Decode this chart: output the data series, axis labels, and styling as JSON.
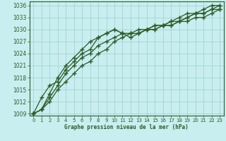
{
  "xlabel": "Graphe pression niveau de la mer (hPa)",
  "bg_color": "#c8eef0",
  "grid_color": "#9dcfcf",
  "line_color": "#2d5a27",
  "xlim": [
    -0.5,
    23.5
  ],
  "ylim": [
    1008.5,
    1037
  ],
  "yticks": [
    1009,
    1012,
    1015,
    1018,
    1021,
    1024,
    1027,
    1030,
    1033,
    1036
  ],
  "xticks": [
    0,
    1,
    2,
    3,
    4,
    5,
    6,
    7,
    8,
    9,
    10,
    11,
    12,
    13,
    14,
    15,
    16,
    17,
    18,
    19,
    20,
    21,
    22,
    23
  ],
  "series": [
    [
      1009,
      1013,
      1016,
      1017,
      1020,
      1022,
      1024,
      1025,
      1028,
      1029,
      1030,
      1029,
      1028,
      1029,
      1030,
      1031,
      1031,
      1032,
      1033,
      1034,
      1034,
      1035,
      1036,
      1036
    ],
    [
      1009,
      1010,
      1014,
      1018,
      1021,
      1023,
      1025,
      1027,
      1028,
      1029,
      1030,
      1029,
      1029,
      1029,
      1030,
      1030,
      1031,
      1031,
      1032,
      1033,
      1034,
      1034,
      1035,
      1036
    ],
    [
      1009,
      1010,
      1013,
      1016,
      1019,
      1021,
      1023,
      1024,
      1026,
      1027,
      1028,
      1029,
      1029,
      1030,
      1030,
      1031,
      1031,
      1032,
      1032,
      1033,
      1034,
      1034,
      1035,
      1035
    ],
    [
      1009,
      1010,
      1012,
      1015,
      1017,
      1019,
      1021,
      1022,
      1024,
      1025,
      1027,
      1028,
      1029,
      1029,
      1030,
      1030,
      1031,
      1031,
      1032,
      1032,
      1033,
      1033,
      1034,
      1035
    ]
  ]
}
